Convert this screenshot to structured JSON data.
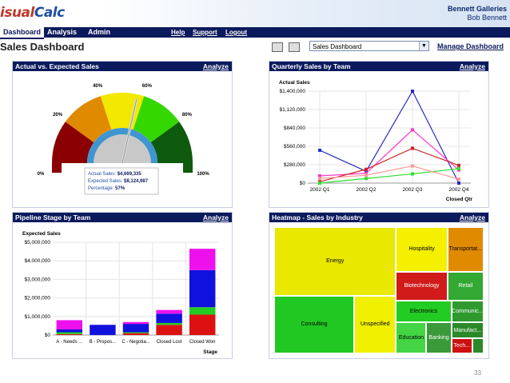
{
  "app": {
    "logo_prefix": "isual",
    "logo_suffix": "Calc",
    "company": "Bennett Galleries",
    "user": "Bob Bennett"
  },
  "nav": {
    "tabs": [
      {
        "label": "Dashboard"
      },
      {
        "label": "Analysis"
      },
      {
        "label": "Admin"
      }
    ],
    "links": [
      {
        "label": "Help"
      },
      {
        "label": "Support"
      },
      {
        "label": "Logout"
      }
    ]
  },
  "page": {
    "title": "Sales Dashboard",
    "selected_dashboard": "Sales Dashboard",
    "manage_label": "Manage Dashboard",
    "page_number": "33"
  },
  "panels": {
    "gauge": {
      "title": "Actual vs. Expected Sales",
      "action": "Analyze"
    },
    "quarterly": {
      "title": "Quarterly Sales by Team",
      "action": "Analyze"
    },
    "pipeline": {
      "title": "Pipeline Stage by Team",
      "action": "Analyze"
    },
    "heatmap": {
      "title": "Heatmap - Sales by Industry",
      "action": "Analyze"
    }
  },
  "chart_data": [
    {
      "type": "gauge",
      "ticks": [
        "0%",
        "20%",
        "40%",
        "60%",
        "80%",
        "100%"
      ],
      "value_percent": 57,
      "tooltip": [
        {
          "label": "Actual Sales:",
          "value": "$4,669,335"
        },
        {
          "label": "Expected Sales:",
          "value": "$8,124,987"
        },
        {
          "label": "Percentage:",
          "value": "57%"
        }
      ],
      "colors": [
        "#8b0000",
        "#e08a00",
        "#f2e800",
        "#35d700",
        "#0e5a0e"
      ]
    },
    {
      "type": "line",
      "ylabel": "Actual Sales",
      "xlabel": "Closed Qtr",
      "categories": [
        "2002 Q1",
        "2002 Q2",
        "2002 Q3",
        "2002 Q4"
      ],
      "yticks": [
        "$0",
        "$280,000",
        "$560,000",
        "$840,000",
        "$1,120,000",
        "$1,400,000"
      ],
      "ylim": [
        0,
        1400000
      ],
      "series": [
        {
          "color": "#2a2ac8",
          "values": [
            500000,
            180000,
            1400000,
            0
          ]
        },
        {
          "color": "#ff33cc",
          "values": [
            110000,
            150000,
            810000,
            200000
          ]
        },
        {
          "color": "#cc2222",
          "values": [
            20000,
            210000,
            530000,
            270000
          ]
        },
        {
          "color": "#33dd33",
          "values": [
            0,
            70000,
            140000,
            220000
          ]
        },
        {
          "color": "#ff9999",
          "values": [
            70000,
            120000,
            260000,
            60000
          ]
        }
      ]
    },
    {
      "type": "bar",
      "stacked": true,
      "ylabel": "Expected Sales",
      "xlabel": "Stage",
      "categories": [
        "A - Needs ...",
        "B - Propos...",
        "C - Negotia...",
        "Closed Lost",
        "Closed Won"
      ],
      "yticks": [
        "$0",
        "$1,000,000",
        "$2,000,000",
        "$3,000,000",
        "$4,000,000",
        "$5,000,000"
      ],
      "ylim": [
        0,
        5000000
      ],
      "series": [
        {
          "color": "#dd1111",
          "values": [
            50000,
            0,
            100000,
            550000,
            1100000
          ]
        },
        {
          "color": "#22cc22",
          "values": [
            100000,
            0,
            50000,
            100000,
            400000
          ]
        },
        {
          "color": "#1111dd",
          "values": [
            150000,
            550000,
            450000,
            500000,
            2000000
          ]
        },
        {
          "color": "#ee11ee",
          "values": [
            500000,
            0,
            100000,
            200000,
            1150000
          ]
        }
      ]
    },
    {
      "type": "heatmap",
      "cells": [
        {
          "label": "Energy",
          "color": "#e8e800"
        },
        {
          "label": "Hospitality",
          "color": "#f4f000"
        },
        {
          "label": "Transportat...",
          "color": "#e08a00"
        },
        {
          "label": "Biotechnology",
          "color": "#d11a1a"
        },
        {
          "label": "Retail",
          "color": "#33a833"
        },
        {
          "label": "Consulting",
          "color": "#22c822"
        },
        {
          "label": "Unspecified",
          "color": "#f0f000"
        },
        {
          "label": "Electronics",
          "color": "#22cc22"
        },
        {
          "label": "Communic...",
          "color": "#2e9a2e"
        },
        {
          "label": "Manufact...",
          "color": "#2a8a2a"
        },
        {
          "label": "Education",
          "color": "#44d544"
        },
        {
          "label": "Banking",
          "color": "#3a9a3a"
        },
        {
          "label": "Tech...",
          "color": "#cc1111"
        }
      ]
    }
  ]
}
